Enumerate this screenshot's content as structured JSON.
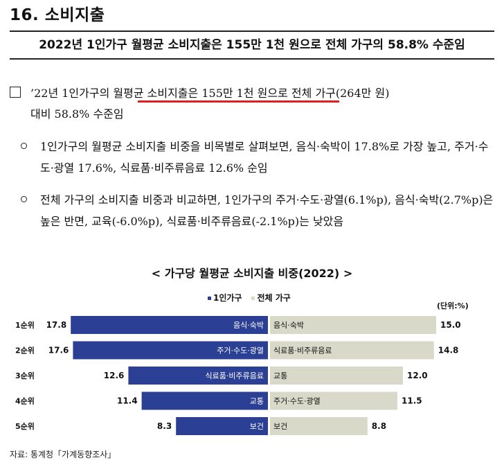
{
  "section_title": "16. 소비지출",
  "headline": "2022년 1인가구 월평균 소비지출은 155만 1천 원으로 전체 가구의 58.8% 수준임",
  "para1": {
    "pre": "’22년 1인가구의 ",
    "highlight": "월평균 소비지출은 155만 1천 원",
    "post": "으로 전체 가구(264만 원)",
    "line2": "대비 58.8% 수준임"
  },
  "bullet1": "1인가구의 월평균 소비지출 비중을 비목별로 살펴보면, 음식·숙박이 17.8%로 가장 높고, 주거·수도·광열 17.6%, 식료품·비주류음료 12.6% 순임",
  "bullet2": "전체 가구의 소비지출 비중과 비교하면, 1인가구의 주거·수도·광열(6.1%p), 음식·숙박(2.7%p)은 높은 반면, 교육(-6.0%p), 식료품·비주류음료(-2.1%p)는 낮았음",
  "colors": {
    "one_person": "#2b3f94",
    "all": "#d9d9c9",
    "highlight_line": "#e01e1e"
  },
  "chart_data": {
    "type": "bar",
    "title": "< 가구당 월평균 소비지출 비중(2022) >",
    "unit": "(단위:%)",
    "orientation": "horizontal-butterfly",
    "ranks": [
      "1순위",
      "2순위",
      "3순위",
      "4순위",
      "5순위"
    ],
    "series": [
      {
        "name": "1인가구",
        "categories": [
          "음식·숙박",
          "주거·수도·광열",
          "식료품·비주류음료",
          "교통",
          "보건"
        ],
        "values": [
          17.8,
          17.6,
          12.6,
          11.4,
          8.3
        ],
        "value_labels": [
          "17.8",
          "17.6",
          "12.6",
          "11.4",
          "8.3"
        ]
      },
      {
        "name": "전체 가구",
        "categories": [
          "음식·숙박",
          "식료품·비주류음료",
          "교통",
          "주거·수도·광열",
          "보건"
        ],
        "values": [
          15.0,
          14.8,
          12.0,
          11.5,
          8.8
        ],
        "value_labels": [
          "15.0",
          "14.8",
          "12.0",
          "11.5",
          "8.8"
        ]
      }
    ]
  },
  "source": "자료: 통계청「가계동향조사」"
}
